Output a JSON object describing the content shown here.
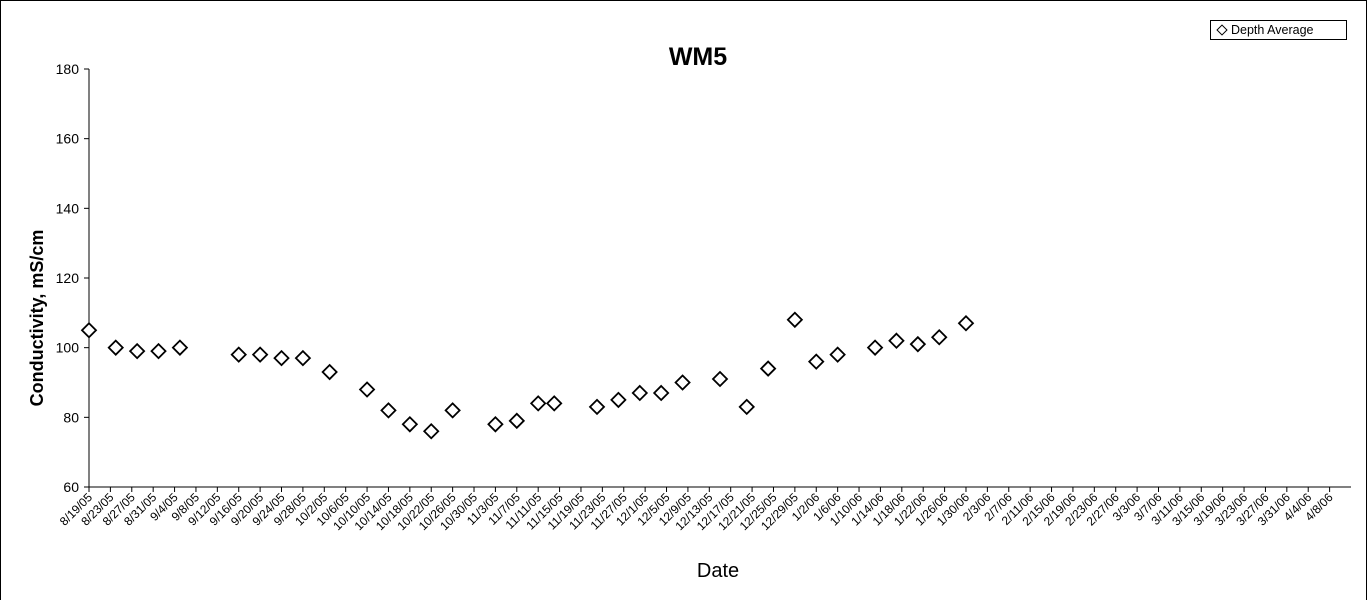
{
  "chart_data": {
    "type": "scatter",
    "title": "WM5",
    "xlabel": "Date",
    "ylabel": "Conductivity, mS/cm",
    "ylim": [
      60,
      180
    ],
    "yticks": [
      60,
      80,
      100,
      120,
      140,
      160,
      180
    ],
    "xticks": [
      "8/19/05",
      "8/23/05",
      "8/27/05",
      "8/31/05",
      "9/4/05",
      "9/8/05",
      "9/12/05",
      "9/16/05",
      "9/20/05",
      "9/24/05",
      "9/28/05",
      "10/2/05",
      "10/6/05",
      "10/10/05",
      "10/14/05",
      "10/18/05",
      "10/22/05",
      "10/26/05",
      "10/30/05",
      "11/3/05",
      "11/7/05",
      "11/11/05",
      "11/15/05",
      "11/19/05",
      "11/23/05",
      "11/27/05",
      "12/1/05",
      "12/5/05",
      "12/9/05",
      "12/13/05",
      "12/17/05",
      "12/21/05",
      "12/25/05",
      "12/29/05",
      "1/2/06",
      "1/6/06",
      "1/10/06",
      "1/14/06",
      "1/18/06",
      "1/22/06",
      "1/26/06",
      "1/30/06",
      "2/3/06",
      "2/7/06",
      "2/11/06",
      "2/15/06",
      "2/19/06",
      "2/23/06",
      "2/27/06",
      "3/3/06",
      "3/7/06",
      "3/11/06",
      "3/15/06",
      "3/19/06",
      "3/23/06",
      "3/27/06",
      "3/31/06",
      "4/4/06",
      "4/8/06"
    ],
    "grid": false,
    "legend_position": "top-right",
    "series": [
      {
        "name": "Depth Average",
        "marker": "diamond-open",
        "color": "#000000",
        "points": [
          {
            "x": "8/19/05",
            "y": 105
          },
          {
            "x": "8/24/05",
            "y": 100
          },
          {
            "x": "8/28/05",
            "y": 99
          },
          {
            "x": "9/1/05",
            "y": 99
          },
          {
            "x": "9/5/05",
            "y": 100
          },
          {
            "x": "9/16/05",
            "y": 98
          },
          {
            "x": "9/20/05",
            "y": 98
          },
          {
            "x": "9/24/05",
            "y": 97
          },
          {
            "x": "9/28/05",
            "y": 97
          },
          {
            "x": "10/3/05",
            "y": 93
          },
          {
            "x": "10/10/05",
            "y": 88
          },
          {
            "x": "10/14/05",
            "y": 82
          },
          {
            "x": "10/18/05",
            "y": 78
          },
          {
            "x": "10/22/05",
            "y": 76
          },
          {
            "x": "10/26/05",
            "y": 82
          },
          {
            "x": "11/3/05",
            "y": 78
          },
          {
            "x": "11/7/05",
            "y": 79
          },
          {
            "x": "11/11/05",
            "y": 84
          },
          {
            "x": "11/14/05",
            "y": 84
          },
          {
            "x": "11/22/05",
            "y": 83
          },
          {
            "x": "11/26/05",
            "y": 85
          },
          {
            "x": "11/30/05",
            "y": 87
          },
          {
            "x": "12/4/05",
            "y": 87
          },
          {
            "x": "12/8/05",
            "y": 90
          },
          {
            "x": "12/15/05",
            "y": 91
          },
          {
            "x": "12/20/05",
            "y": 83
          },
          {
            "x": "12/24/05",
            "y": 94
          },
          {
            "x": "12/29/05",
            "y": 108
          },
          {
            "x": "1/2/06",
            "y": 96
          },
          {
            "x": "1/6/06",
            "y": 98
          },
          {
            "x": "1/13/06",
            "y": 100
          },
          {
            "x": "1/17/06",
            "y": 102
          },
          {
            "x": "1/21/06",
            "y": 101
          },
          {
            "x": "1/25/06",
            "y": 103
          },
          {
            "x": "1/30/06",
            "y": 107
          }
        ]
      }
    ]
  }
}
